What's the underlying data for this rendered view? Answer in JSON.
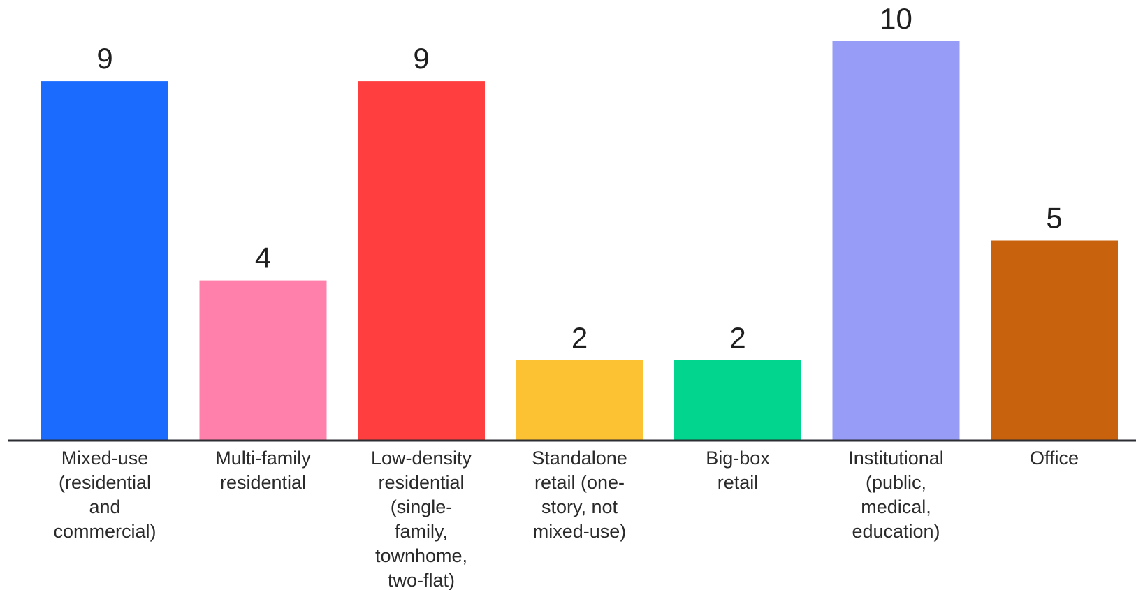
{
  "chart_data": {
    "type": "bar",
    "categories": [
      "Mixed-use (residential and commercial)",
      "Multi-family residential",
      "Low-density residential (single-family, townhome, two-flat)",
      "Standalone retail (one-story, not mixed-use)",
      "Big-box retail",
      "Institutional (public, medical, education)",
      "Office"
    ],
    "category_lines": [
      [
        "Mixed-use",
        "(residential",
        "and",
        "commercial)"
      ],
      [
        "Multi-family",
        "residential"
      ],
      [
        "Low-density",
        "residential",
        "(single-",
        "family,",
        "townhome,",
        "two-flat)"
      ],
      [
        "Standalone",
        "retail (one-",
        "story, not",
        "mixed-use)"
      ],
      [
        "Big-box",
        "retail"
      ],
      [
        "Institutional",
        "(public,",
        "medical,",
        "education)"
      ],
      [
        "Office"
      ]
    ],
    "values": [
      9,
      4,
      9,
      2,
      2,
      10,
      5
    ],
    "value_labels": [
      "9",
      "4",
      "9",
      "2",
      "2",
      "10",
      "5"
    ],
    "colors": [
      "#1c6bff",
      "#ff80aa",
      "#ff3f3f",
      "#fdc234",
      "#02d68e",
      "#979cf6",
      "#c8620c"
    ],
    "ylim": [
      0,
      10
    ],
    "grid": false,
    "axis_color": "#2b2d33"
  }
}
